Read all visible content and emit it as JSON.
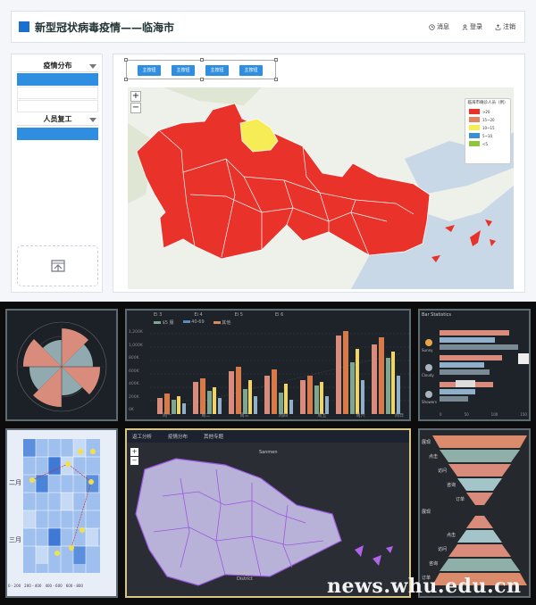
{
  "header": {
    "title": "新型冠状病毒疫情——临海市",
    "nav": [
      {
        "label": "消息",
        "icon": "clock-icon"
      },
      {
        "label": "登录",
        "icon": "user-icon"
      },
      {
        "label": "注销",
        "icon": "logout-icon"
      }
    ]
  },
  "sidebar": {
    "menu1": "疫情分布",
    "menu2": "人员复工",
    "upload_icon": "upload-icon"
  },
  "toolbar": {
    "buttons": [
      "主按钮",
      "主按钮",
      "主按钮",
      "主按钮"
    ]
  },
  "map": {
    "zoom_in": "+",
    "zoom_out": "−",
    "legend": {
      "title": "临海市确诊人员（例）",
      "items": [
        {
          "label": ">20",
          "color": "#e8322a"
        },
        {
          "label": "15~20",
          "color": "#e8815f"
        },
        {
          "label": "10~15",
          "color": "#f6ec55"
        },
        {
          "label": "5~10",
          "color": "#3b8fd8"
        },
        {
          "label": "<5",
          "color": "#8ec63f"
        }
      ]
    }
  },
  "dashboard": {
    "bar_top_labels": [
      "Ei 3",
      "Ei 4",
      "Ei 5",
      "Ei 6"
    ],
    "bar_legend": [
      "$5 服",
      "40-69",
      "其他"
    ],
    "bar_yticks": [
      "1,200K",
      "1,000K",
      "800K",
      "600K",
      "400K",
      "200K",
      "0K"
    ],
    "bar_xticks": [
      "周一",
      "周二",
      "周三",
      "周四",
      "周五",
      "周六",
      "周日"
    ],
    "hbar_title": "Bar Statistics",
    "hbar_labels": [
      "Sunny",
      "Cloudy",
      "Showers"
    ],
    "hbar_xticks": [
      "0",
      "50",
      "100",
      "150"
    ],
    "heat_labels": [
      "二月",
      "三月"
    ],
    "heat_scale": [
      "0 - 200",
      "200 - 400",
      "400 - 600",
      "600 - 800"
    ],
    "darkmap_tabs": [
      "返工分析",
      "疫情分布",
      "其他专题"
    ],
    "darkmap_labels": [
      "Sanmen",
      "Huangyan District"
    ],
    "funnel_labels": [
      "展现",
      "点击",
      "访问",
      "咨询",
      "订单",
      "展现",
      "点击",
      "访问",
      "咨询",
      "订单"
    ]
  },
  "watermark": "news.whu.edu.cn"
}
